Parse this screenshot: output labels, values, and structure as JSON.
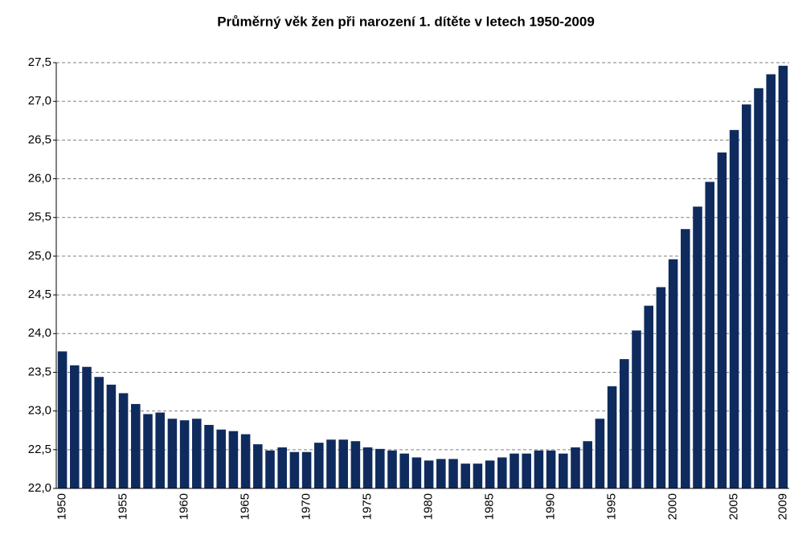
{
  "chart_data": {
    "type": "bar",
    "title": "Průměrný věk žen při narození 1. dítěte v letech  1950-2009",
    "categories": [
      "1950",
      null,
      null,
      null,
      null,
      "1955",
      null,
      null,
      null,
      null,
      "1960",
      null,
      null,
      null,
      null,
      "1965",
      null,
      null,
      null,
      null,
      "1970",
      null,
      null,
      null,
      null,
      "1975",
      null,
      null,
      null,
      null,
      "1980",
      null,
      null,
      null,
      null,
      "1985",
      null,
      null,
      null,
      null,
      "1990",
      null,
      null,
      null,
      null,
      "1995",
      null,
      null,
      null,
      null,
      "2000",
      null,
      null,
      null,
      null,
      "2005",
      null,
      null,
      null,
      "2009"
    ],
    "values": [
      23.77,
      23.59,
      23.57,
      23.44,
      23.34,
      23.23,
      23.09,
      22.96,
      22.98,
      22.9,
      22.88,
      22.9,
      22.82,
      22.76,
      22.74,
      22.7,
      22.57,
      22.49,
      22.53,
      22.47,
      22.47,
      22.59,
      22.63,
      22.63,
      22.61,
      22.53,
      22.51,
      22.49,
      22.45,
      22.4,
      22.36,
      22.38,
      22.38,
      22.32,
      22.32,
      22.36,
      22.4,
      22.45,
      22.45,
      22.49,
      22.49,
      22.45,
      22.53,
      22.61,
      22.9,
      23.32,
      23.67,
      24.04,
      24.36,
      24.6,
      24.96,
      25.35,
      25.64,
      25.96,
      26.34,
      26.63,
      26.96,
      27.17,
      27.35,
      27.46
    ],
    "color": "#0f2b5e",
    "ylim": [
      22.0,
      27.5
    ],
    "yticks": [
      {
        "value": 22.0,
        "label": "22,0"
      },
      {
        "value": 22.5,
        "label": "22,5"
      },
      {
        "value": 23.0,
        "label": "23,0"
      },
      {
        "value": 23.5,
        "label": "23,5"
      },
      {
        "value": 24.0,
        "label": "24,0"
      },
      {
        "value": 24.5,
        "label": "24,5"
      },
      {
        "value": 25.0,
        "label": "25,0"
      },
      {
        "value": 25.5,
        "label": "25,5"
      },
      {
        "value": 26.0,
        "label": "26,0"
      },
      {
        "value": 26.5,
        "label": "26,5"
      },
      {
        "value": 27.0,
        "label": "27,0"
      },
      {
        "value": 27.5,
        "label": "27,5"
      }
    ],
    "grid": true
  }
}
